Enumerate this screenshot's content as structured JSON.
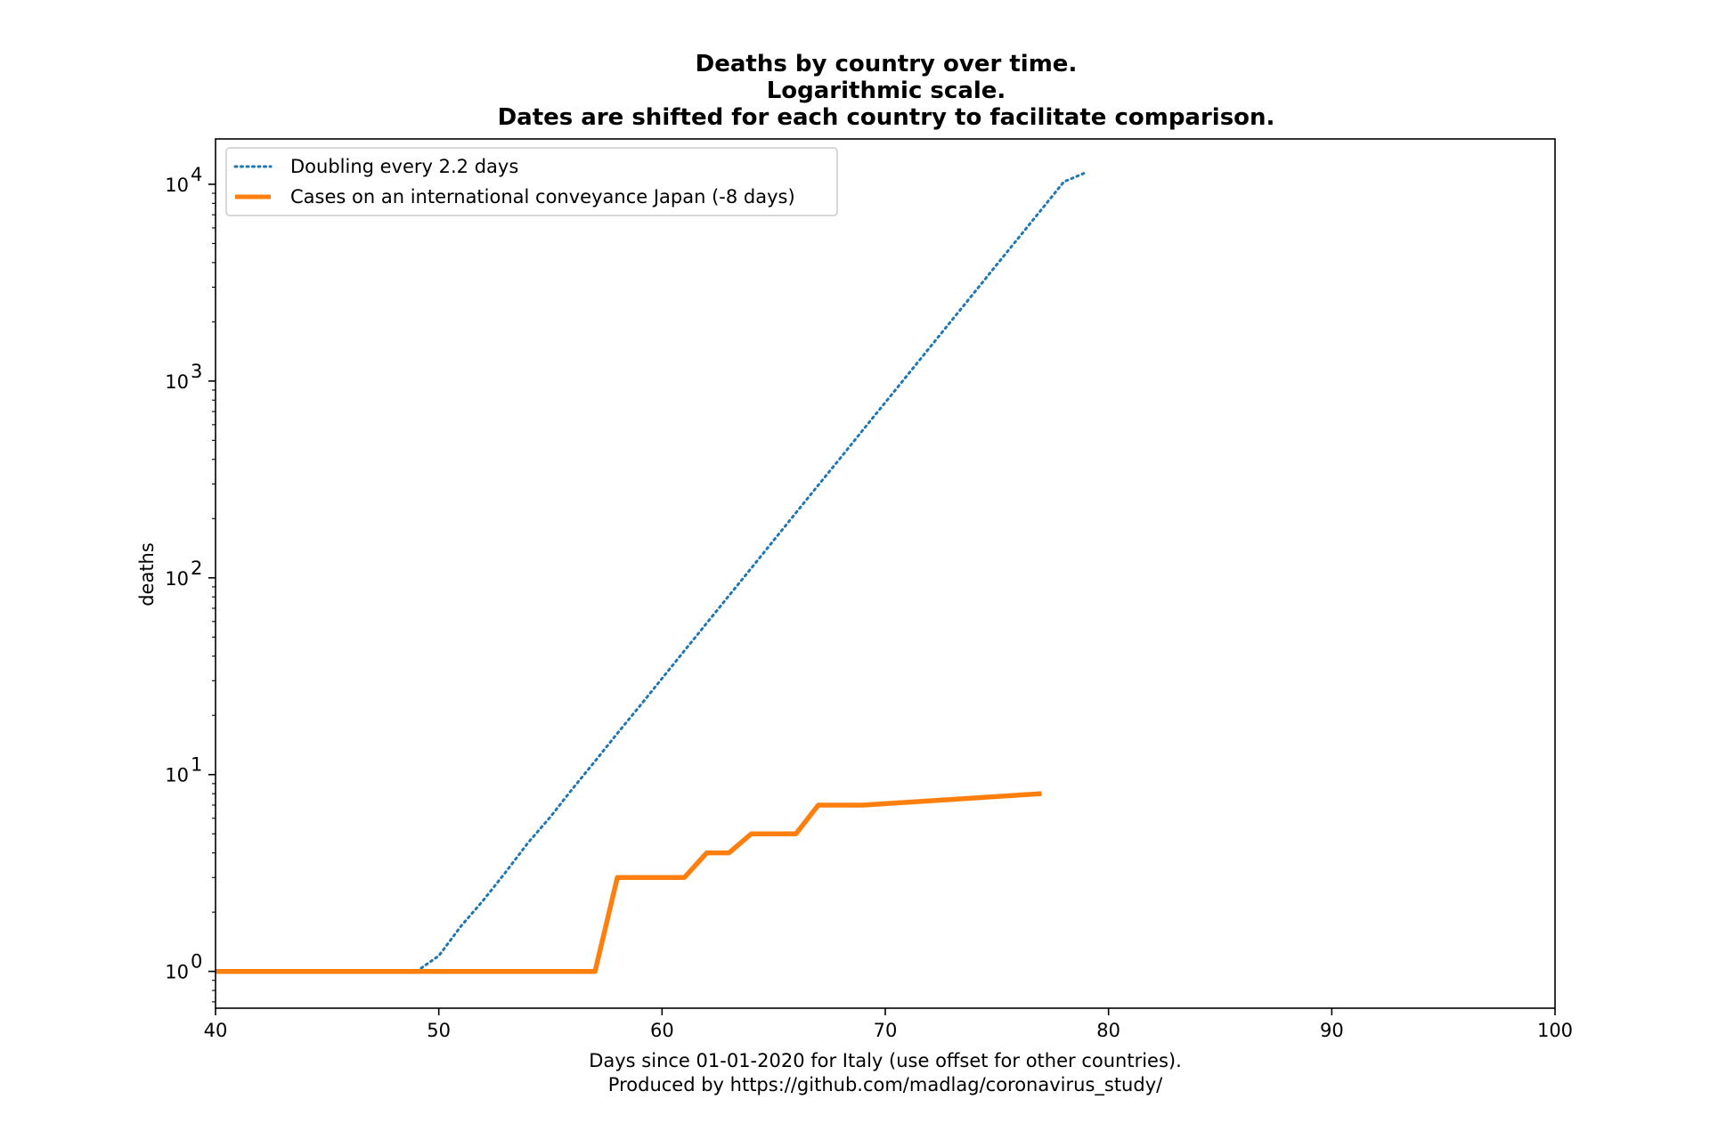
{
  "chart_data": {
    "type": "line",
    "title_lines": [
      "Deaths by country over time.",
      "Logarithmic scale.",
      "Dates are shifted for each country to facilitate comparison."
    ],
    "xlabel_lines": [
      "Days since 01-01-2020 for Italy (use offset for other countries).",
      "Produced by https://github.com/madlag/coronavirus_study/"
    ],
    "ylabel": "deaths",
    "x_scale": "linear",
    "y_scale": "log",
    "xlim": [
      40,
      100
    ],
    "ylim": [
      0.65,
      17000
    ],
    "x_ticks": [
      40,
      50,
      60,
      70,
      80,
      90,
      100
    ],
    "x_tick_labels": [
      "40",
      "50",
      "60",
      "70",
      "80",
      "90",
      "100"
    ],
    "y_ticks": [
      1,
      10,
      100,
      1000,
      10000
    ],
    "y_tick_labels": [
      {
        "base": "10",
        "exp": "0"
      },
      {
        "base": "10",
        "exp": "1"
      },
      {
        "base": "10",
        "exp": "2"
      },
      {
        "base": "10",
        "exp": "3"
      },
      {
        "base": "10",
        "exp": "4"
      }
    ],
    "grid": false,
    "legend_position": "top-left",
    "series": [
      {
        "name": "Doubling every 2.2 days",
        "color": "#1f77b4",
        "style": "dotted",
        "x": [
          49,
          50,
          51,
          52,
          53,
          54,
          55,
          56,
          57,
          58,
          59,
          60,
          61,
          62,
          63,
          64,
          65,
          66,
          67,
          68,
          69,
          70,
          71,
          72,
          73,
          74,
          75,
          76,
          77,
          78,
          79
        ],
        "y": [
          1,
          1.2,
          1.7,
          2.3,
          3.2,
          4.5,
          6.1,
          8.5,
          11.7,
          16.2,
          22.3,
          30.8,
          42.6,
          58.8,
          81.2,
          112,
          155,
          214,
          296,
          408,
          564,
          778,
          1075,
          1484,
          2050,
          2830,
          3909,
          5398,
          7454,
          10293,
          11500
        ]
      },
      {
        "name": "Cases on an international conveyance Japan (-8 days)",
        "color": "#ff7f0e",
        "style": "solid",
        "x": [
          40,
          57,
          58,
          61,
          62,
          63,
          64,
          66,
          67,
          69,
          77
        ],
        "y": [
          1,
          1,
          3,
          3,
          4,
          4,
          5,
          5,
          7,
          7,
          8
        ]
      }
    ]
  }
}
